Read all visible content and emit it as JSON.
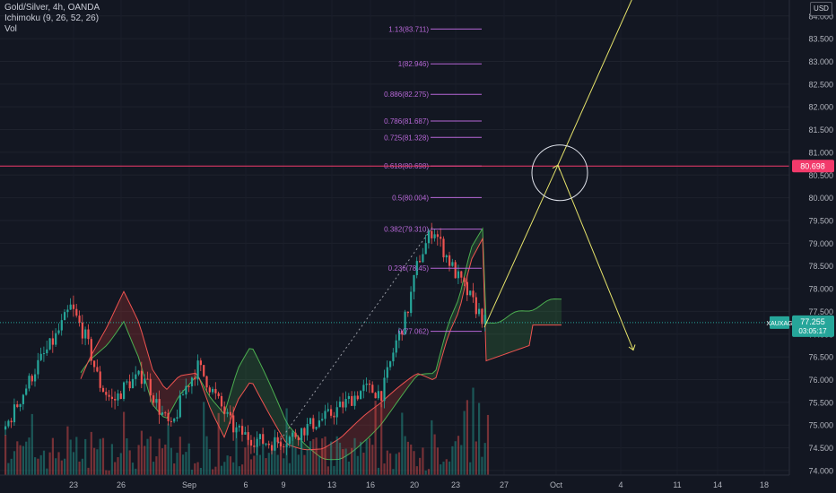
{
  "legend": {
    "symbol": "Gold/Silver, 4h, OANDA",
    "indicator1": "Ichimoku (9, 26, 52, 26)",
    "indicator2": "Vol"
  },
  "currency_badge": "USD",
  "price_axis": {
    "ticks": [
      "84.000",
      "83.500",
      "83.000",
      "82.500",
      "82.000",
      "81.500",
      "81.000",
      "80.500",
      "80.000",
      "79.500",
      "79.000",
      "78.500",
      "78.000",
      "77.500",
      "77.000",
      "76.500",
      "76.000",
      "75.500",
      "75.000",
      "74.500",
      "74.000"
    ],
    "range": [
      73.9,
      84.35
    ]
  },
  "time_axis": {
    "labels": [
      "23",
      "26",
      "Sep",
      "6",
      "9",
      "13",
      "16",
      "20",
      "23",
      "27",
      "Oct",
      "4",
      "11",
      "14",
      "18"
    ]
  },
  "fib_levels": [
    {
      "label": "1.13(83.711)",
      "price": 83.711
    },
    {
      "label": "1(82.946)",
      "price": 82.946
    },
    {
      "label": "0.886(82.275)",
      "price": 82.275
    },
    {
      "label": "0.786(81.687)",
      "price": 81.687
    },
    {
      "label": "0.725(81.328)",
      "price": 81.328
    },
    {
      "label": "0.618(80.698)",
      "price": 80.698
    },
    {
      "label": "0.5(80.004)",
      "price": 80.004
    },
    {
      "label": "0.382(79.310)",
      "price": 79.31
    },
    {
      "label": "0.236(78.45)",
      "price": 78.45
    },
    {
      "label": "0(77.062)",
      "price": 77.062
    }
  ],
  "horizontal_line": {
    "label": "80.698",
    "price": 80.698
  },
  "ticker": {
    "symbol": "XAUXAG",
    "price": "77.255",
    "countdown": "03:05:17",
    "price_value": 77.255
  },
  "colors": {
    "up": "#26a69a",
    "down": "#ef5350",
    "fib": "#b667d6",
    "projection": "#e6e36a",
    "hline": "#f23a6b",
    "background": "#131722"
  }
}
